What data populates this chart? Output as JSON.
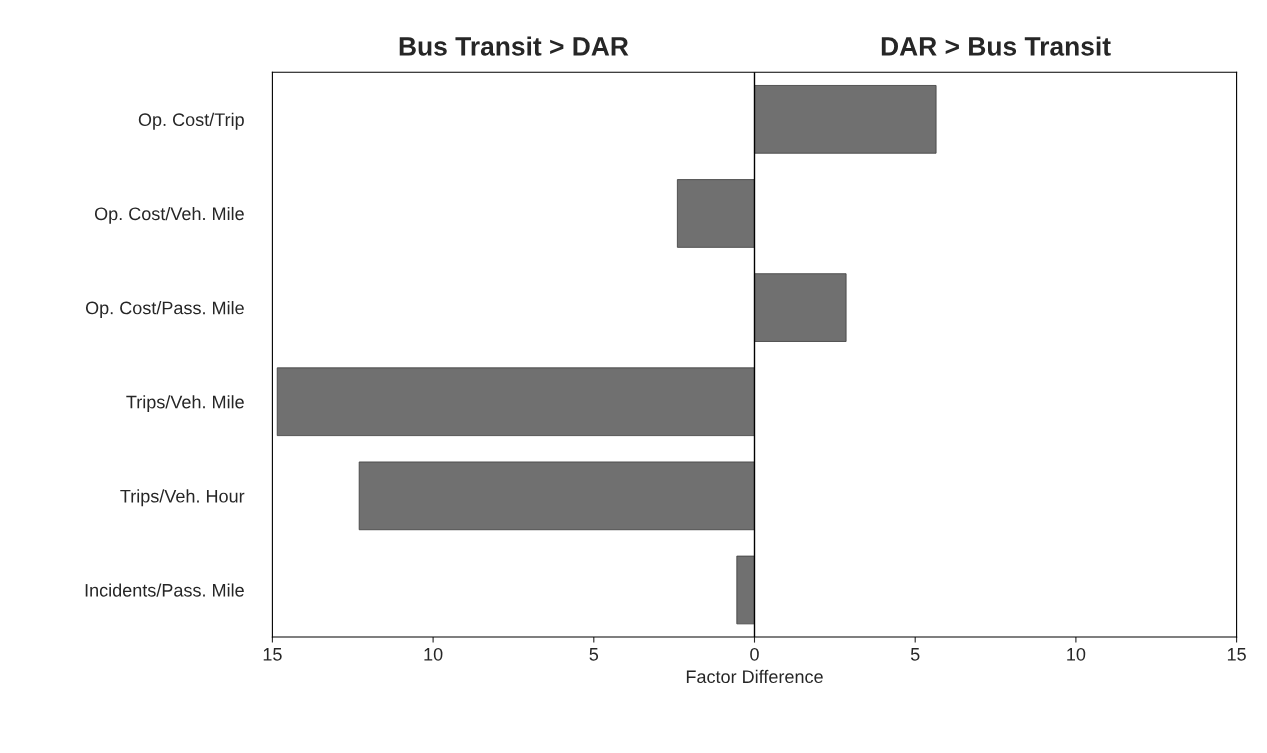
{
  "chart_data": {
    "type": "bar",
    "orientation": "horizontal",
    "xlabel": "Factor Difference",
    "categories": [
      "Op. Cost/Trip",
      "Op. Cost/Veh. Mile",
      "Op. Cost/Pass. Mile",
      "Trips/Veh. Mile",
      "Trips/Veh. Hour",
      "Incidents/Pass. Mile"
    ],
    "values": [
      5.65,
      -2.4,
      2.85,
      -14.85,
      -12.3,
      -0.55
    ],
    "color": "#707070",
    "xlim": [
      -15,
      15
    ],
    "xticks": [
      {
        "value": -15,
        "label": "15"
      },
      {
        "value": -10,
        "label": "10"
      },
      {
        "value": -5,
        "label": "5"
      },
      0,
      5,
      10,
      15
    ],
    "ref_lines": [
      {
        "axis": "x",
        "value": 0,
        "color": "#000000"
      }
    ],
    "annotations": [
      "Bus Transit > DAR",
      "DAR > Bus Transit"
    ],
    "grid": false,
    "legend": false
  }
}
